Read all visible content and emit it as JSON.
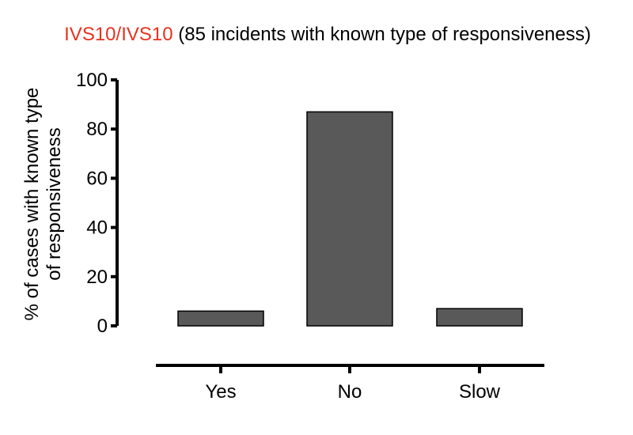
{
  "chart_data": {
    "type": "bar",
    "title_highlight": "IVS10/IVS10",
    "title_rest": " (85 incidents with known type of responsiveness)",
    "ylabel_lines": [
      "% of cases with  known type",
      "of responsiveness"
    ],
    "xlabel": "",
    "categories": [
      "Yes",
      "No",
      "Slow"
    ],
    "values": [
      6,
      87,
      7
    ],
    "ylim": [
      0,
      100
    ],
    "yticks": [
      0,
      20,
      40,
      60,
      80,
      100
    ],
    "grid": false,
    "colors": {
      "bar": "#595959",
      "title_highlight": "#e8321e",
      "text": "#000000"
    }
  }
}
